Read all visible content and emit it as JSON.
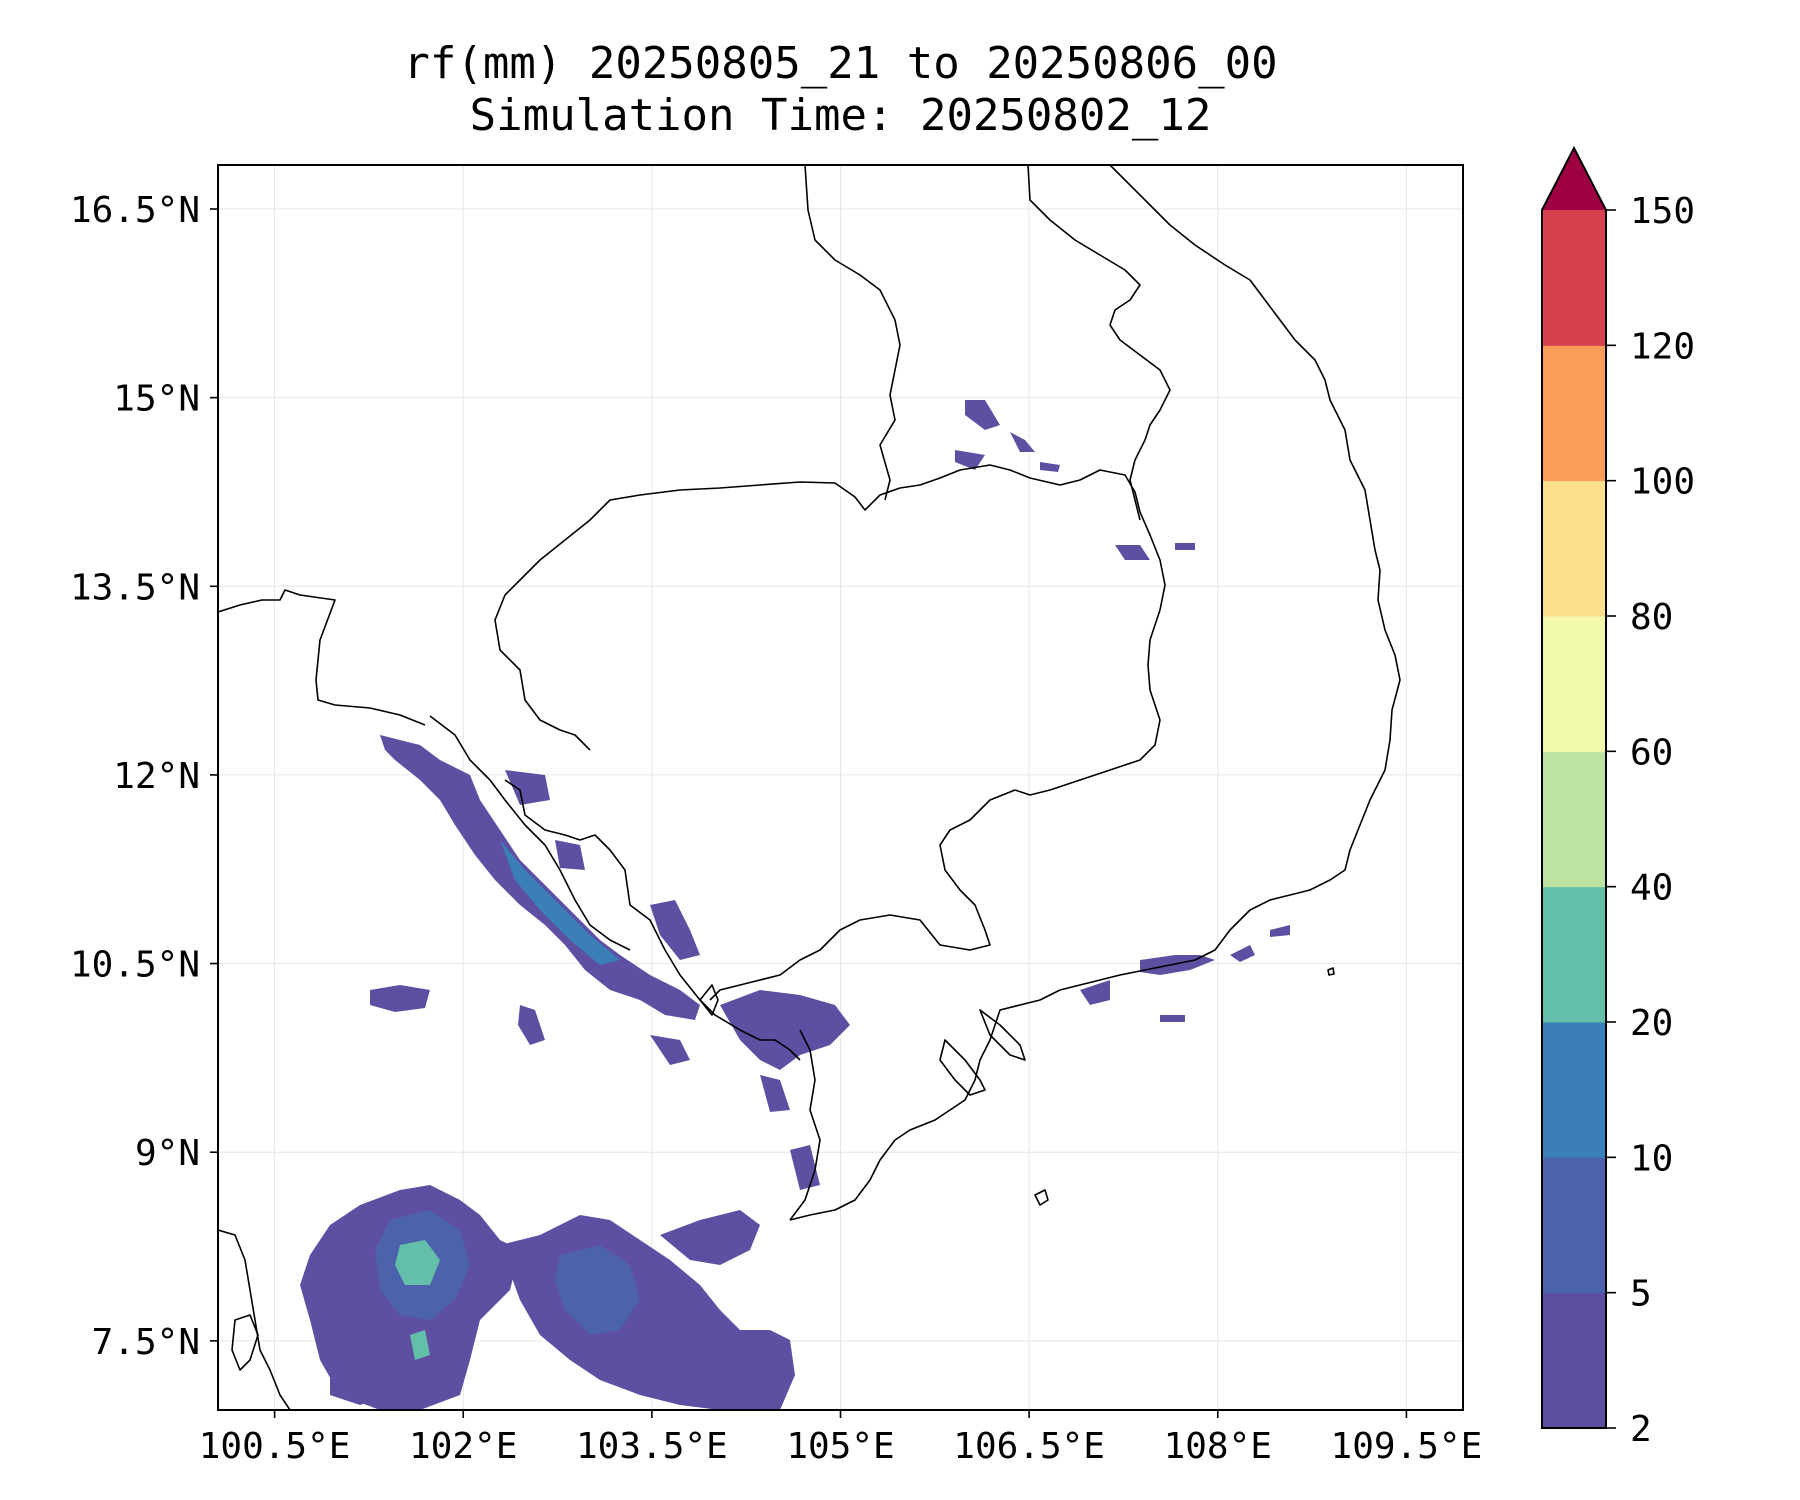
{
  "title": {
    "line1": "rf(mm) 20250805_21 to 20250806_00",
    "line2": "Simulation Time: 20250802_12"
  },
  "map": {
    "lon_min": 100.05,
    "lon_max": 109.95,
    "lat_min": 6.95,
    "lat_max": 16.85,
    "x_ticks": [
      {
        "value": 100.5,
        "label": "100.5°E"
      },
      {
        "value": 102.0,
        "label": "102°E"
      },
      {
        "value": 103.5,
        "label": "103.5°E"
      },
      {
        "value": 105.0,
        "label": "105°E"
      },
      {
        "value": 106.5,
        "label": "106.5°E"
      },
      {
        "value": 108.0,
        "label": "108°E"
      },
      {
        "value": 109.5,
        "label": "109.5°E"
      }
    ],
    "y_ticks": [
      {
        "value": 7.5,
        "label": "7.5°N"
      },
      {
        "value": 9.0,
        "label": "9°N"
      },
      {
        "value": 10.5,
        "label": "10.5°N"
      },
      {
        "value": 12.0,
        "label": "12°N"
      },
      {
        "value": 13.5,
        "label": "13.5°N"
      },
      {
        "value": 15.0,
        "label": "15°N"
      },
      {
        "value": 16.5,
        "label": "16.5°N"
      }
    ],
    "grid": true
  },
  "colorbar": {
    "levels": [
      "2",
      "5",
      "10",
      "20",
      "40",
      "60",
      "80",
      "100",
      "120",
      "150"
    ],
    "colors": [
      "#5e4fa2",
      "#4c62ad",
      "#3a7fb8",
      "#63bfa9",
      "#bde3a0",
      "#f2f9ad",
      "#fddf8b",
      "#f99d5a",
      "#d5414f"
    ],
    "extend_color": "#9e0142"
  }
}
